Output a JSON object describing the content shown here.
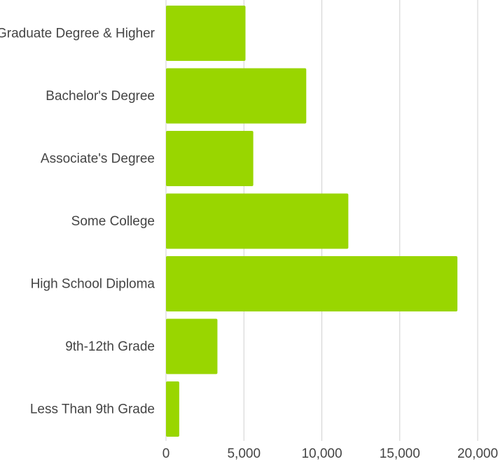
{
  "chart_data": {
    "type": "bar",
    "orientation": "horizontal",
    "categories": [
      "Graduate Degree & Higher",
      "Bachelor's Degree",
      "Associate's Degree",
      "Some College",
      "High School Diploma",
      "9th-12th Grade",
      "Less Than 9th Grade"
    ],
    "values": [
      5100,
      9000,
      5600,
      11700,
      18700,
      3300,
      850
    ],
    "xlim": [
      0,
      20000
    ],
    "x_ticks": [
      0,
      5000,
      10000,
      15000,
      20000
    ],
    "x_tick_labels": [
      "0",
      "5,000",
      "10,000",
      "15,000",
      "20,000"
    ],
    "title": "",
    "xlabel": "",
    "ylabel": "",
    "grid": "vertical",
    "legend": "none",
    "bar_color": "#99d600"
  }
}
